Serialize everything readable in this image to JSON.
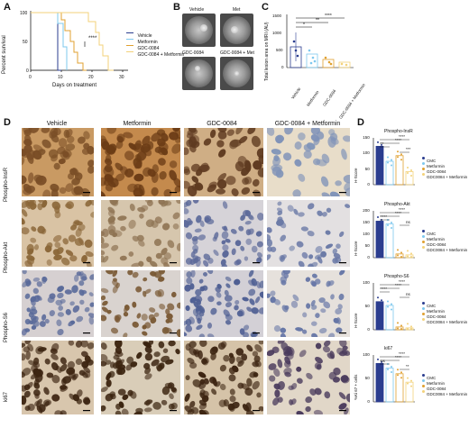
{
  "panels": {
    "a": "A",
    "b": "B",
    "c": "C",
    "d": "D",
    "e": "D"
  },
  "panelA": {
    "ylabel": "Percent survival",
    "xlabel": "Days on treatment",
    "yticks": [
      "100",
      "50",
      "0"
    ],
    "xticks": [
      "0",
      "10",
      "20",
      "30"
    ],
    "significance": "****",
    "legend": [
      "Vehicle",
      "Metformin",
      "GDC-0084",
      "GDC-0084 + Metformin"
    ]
  },
  "panelB": {
    "labels": [
      "Vehicle",
      "Met",
      "GDC-0084",
      "GDC-0084 + Met"
    ]
  },
  "panelC": {
    "ylabel": "Total lesion area on MRI (AU)",
    "yticks": [
      "1500",
      "1000",
      "500",
      "0"
    ],
    "categories": [
      "Vehicle",
      "Metformin",
      "GDC-0084",
      "GDC-0084 + Metformin"
    ],
    "sig": [
      "*",
      "**",
      "****"
    ]
  },
  "panelD": {
    "columns": [
      "Vehicle",
      "Metformin",
      "GDC-0084",
      "GDC-0084 + Metformin"
    ],
    "rows": [
      "Phospho-InsR",
      "Phospho-Akt",
      "Phospho-S6",
      "ki67"
    ]
  },
  "panelE": {
    "legend": [
      "CMC",
      "Metformin",
      "GDC-0084",
      "GDC0084 + Metformin"
    ],
    "plots": [
      {
        "title": "Phospho-InsR",
        "ylabel": "H-Score",
        "yticks": [
          "150",
          "100",
          "50",
          "0"
        ],
        "sig_top": "****",
        "sig_a": "**",
        "sig_b": "****",
        "sig_c": "***"
      },
      {
        "title": "Phospho-Akt",
        "ylabel": "H-Score",
        "yticks": [
          "200",
          "150",
          "100",
          "50",
          "0"
        ],
        "sig_top": "****",
        "sig_a": "****",
        "sig_b": "****",
        "sig_c": "ns"
      },
      {
        "title": "Phospho-S6",
        "ylabel": "H-Score",
        "yticks": [
          "100",
          "50",
          "0"
        ],
        "sig_top": "****",
        "sig_a": "****",
        "sig_b": "****",
        "sig_c": "ns"
      },
      {
        "title": "ki67",
        "ylabel": "%Ki 67 + cells",
        "yticks": [
          "100",
          "50",
          "0"
        ],
        "sig_top": "****",
        "sig_a": "ns",
        "sig_b": "****",
        "sig_c": "**"
      }
    ]
  },
  "colors": {
    "vehicle": "#2b3d8f",
    "metformin": "#7ec8ee",
    "gdc": "#e0a030",
    "combo": "#f3d27a"
  }
}
